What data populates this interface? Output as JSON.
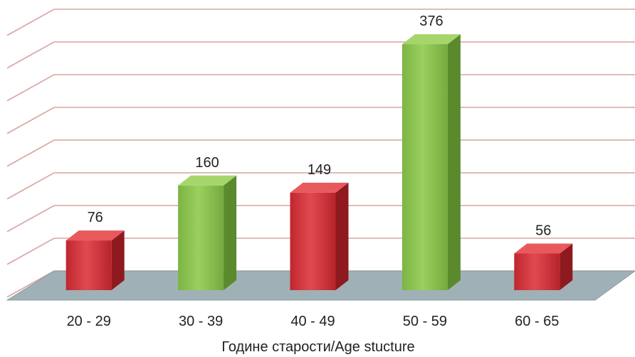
{
  "chart_data": {
    "type": "bar",
    "style": "3d-column",
    "categories": [
      "20 - 29",
      "30 - 39",
      "40 - 49",
      "50 - 59",
      "60 - 65"
    ],
    "values": [
      76,
      160,
      149,
      376,
      56
    ],
    "bar_colors": [
      "red",
      "green",
      "red",
      "green",
      "red"
    ],
    "title": "",
    "xlabel": "Године старости/Age stucture",
    "ylabel": "",
    "ylim": [
      0,
      400
    ],
    "grid": true,
    "legend": "none",
    "y_tick_labels_shown": false
  },
  "colors": {
    "red": "#d3323a",
    "green": "#8cc150",
    "gridline": "#d9a3a3",
    "floor": "#9fb1b6"
  }
}
